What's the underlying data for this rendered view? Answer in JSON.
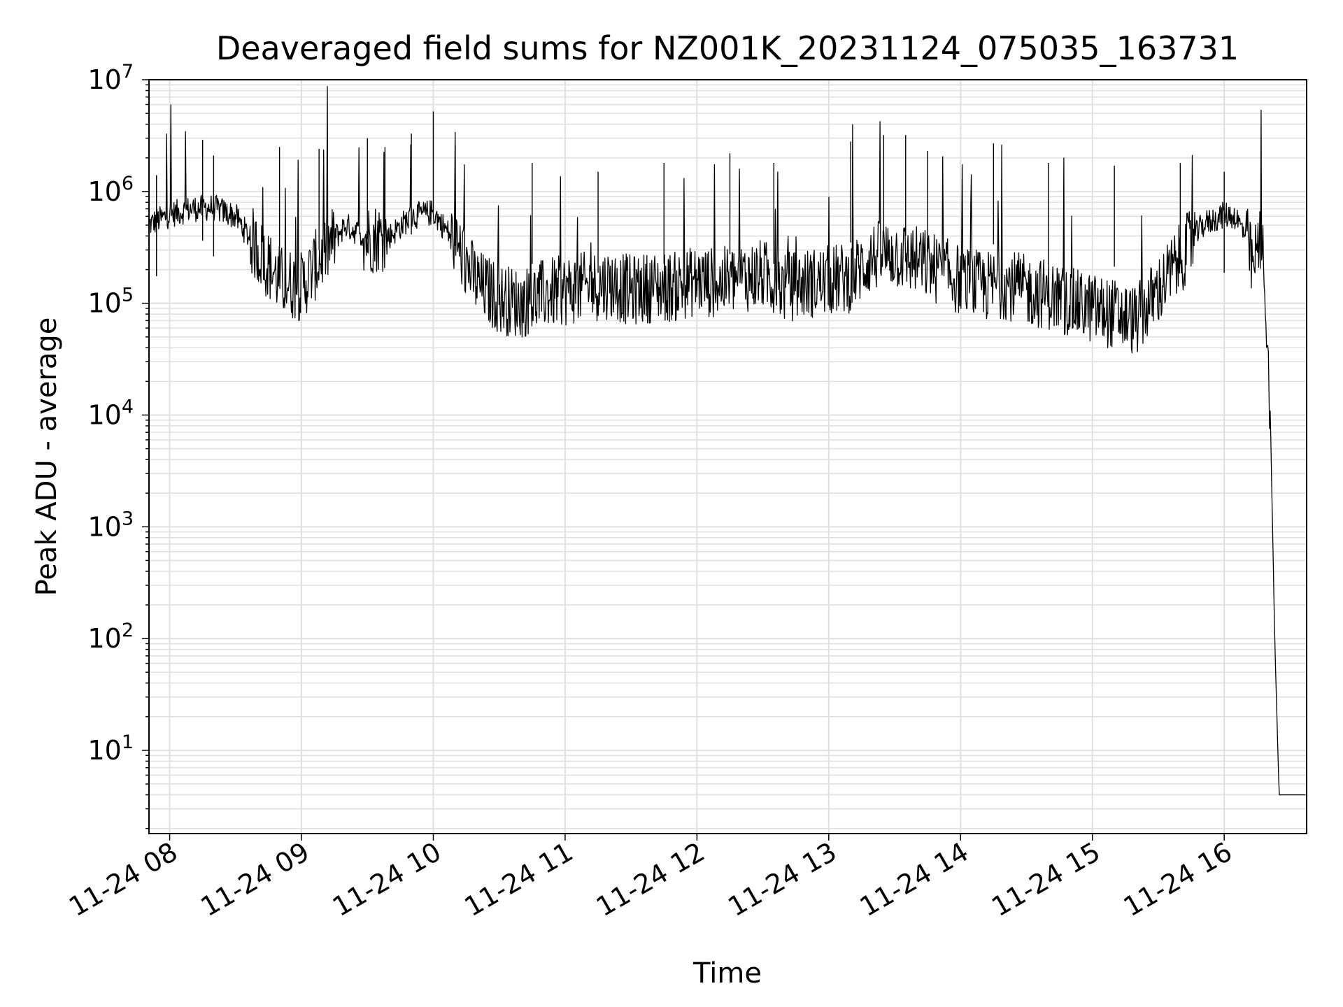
{
  "chart_data": {
    "type": "line",
    "title": "Deaveraged field sums for NZ001K_20231124_075035_163731",
    "xlabel": "Time",
    "ylabel": "Peak ADU - average",
    "yscale": "log",
    "ylim": [
      1.8,
      10000000
    ],
    "xlim": [
      "2023-11-24 07:50:35",
      "2023-11-24 16:37:31"
    ],
    "grid": true,
    "legend": "none",
    "colors": {
      "line": "#000000",
      "grid": "#e0e0e0",
      "axes": "#000000"
    },
    "x_ticks": [
      {
        "t": "2023-11-24 08:00",
        "label": "11-24 08"
      },
      {
        "t": "2023-11-24 09:00",
        "label": "11-24 09"
      },
      {
        "t": "2023-11-24 10:00",
        "label": "11-24 10"
      },
      {
        "t": "2023-11-24 11:00",
        "label": "11-24 11"
      },
      {
        "t": "2023-11-24 12:00",
        "label": "11-24 12"
      },
      {
        "t": "2023-11-24 13:00",
        "label": "11-24 13"
      },
      {
        "t": "2023-11-24 14:00",
        "label": "11-24 14"
      },
      {
        "t": "2023-11-24 15:00",
        "label": "11-24 15"
      },
      {
        "t": "2023-11-24 16:00",
        "label": "11-24 16"
      }
    ],
    "y_ticks": [
      {
        "value": 10,
        "base": "10",
        "exp": "1"
      },
      {
        "value": 100,
        "base": "10",
        "exp": "2"
      },
      {
        "value": 1000,
        "base": "10",
        "exp": "3"
      },
      {
        "value": 10000,
        "base": "10",
        "exp": "4"
      },
      {
        "value": 100000,
        "base": "10",
        "exp": "5"
      },
      {
        "value": 1000000,
        "base": "10",
        "exp": "6"
      },
      {
        "value": 10000000,
        "base": "10",
        "exp": "7"
      }
    ],
    "series": [
      {
        "x": [
          "2023-11-24 07:50",
          "2023-11-24 08:00",
          "2023-11-24 08:10",
          "2023-11-24 08:20",
          "2023-11-24 08:30",
          "2023-11-24 08:40",
          "2023-11-24 08:50",
          "2023-11-24 09:00",
          "2023-11-24 09:10",
          "2023-11-24 09:20",
          "2023-11-24 09:30",
          "2023-11-24 09:40",
          "2023-11-24 09:50",
          "2023-11-24 10:00",
          "2023-11-24 10:10",
          "2023-11-24 10:20",
          "2023-11-24 10:30",
          "2023-11-24 10:40",
          "2023-11-24 10:50",
          "2023-11-24 11:00",
          "2023-11-24 11:10",
          "2023-11-24 11:20",
          "2023-11-24 11:30",
          "2023-11-24 11:40",
          "2023-11-24 11:50",
          "2023-11-24 12:00",
          "2023-11-24 12:10",
          "2023-11-24 12:20",
          "2023-11-24 12:30",
          "2023-11-24 12:40",
          "2023-11-24 12:50",
          "2023-11-24 13:00",
          "2023-11-24 13:10",
          "2023-11-24 13:20",
          "2023-11-24 13:30",
          "2023-11-24 13:40",
          "2023-11-24 13:50",
          "2023-11-24 14:00",
          "2023-11-24 14:10",
          "2023-11-24 14:20",
          "2023-11-24 14:30",
          "2023-11-24 14:40",
          "2023-11-24 14:50",
          "2023-11-24 15:00",
          "2023-11-24 15:10",
          "2023-11-24 15:20",
          "2023-11-24 15:30",
          "2023-11-24 15:40",
          "2023-11-24 15:50",
          "2023-11-24 16:00",
          "2023-11-24 16:05",
          "2023-11-24 16:10",
          "2023-11-24 16:13",
          "2023-11-24 16:15",
          "2023-11-24 16:17",
          "2023-11-24 16:19",
          "2023-11-24 16:21",
          "2023-11-24 16:23",
          "2023-11-24 16:25",
          "2023-11-24 16:27",
          "2023-11-24 16:30",
          "2023-11-24 16:37"
        ],
        "y": [
          500000,
          620000,
          700000,
          720000,
          600000,
          300000,
          160000,
          140000,
          280000,
          500000,
          380000,
          400000,
          600000,
          650000,
          350000,
          150000,
          110000,
          100000,
          120000,
          130000,
          140000,
          150000,
          130000,
          140000,
          140000,
          160000,
          150000,
          170000,
          180000,
          140000,
          150000,
          160000,
          170000,
          260000,
          280000,
          240000,
          200000,
          160000,
          140000,
          150000,
          130000,
          120000,
          100000,
          90000,
          80000,
          70000,
          130000,
          250000,
          500000,
          620000,
          600000,
          400000,
          200000,
          300000,
          400000,
          100000,
          10000,
          100,
          4,
          4,
          4,
          4
        ]
      }
    ],
    "spikes": [
      {
        "x": "2023-11-24 07:54",
        "y": 1400000
      },
      {
        "x": "2023-11-24 08:15",
        "y": 2900000
      },
      {
        "x": "2023-11-24 08:20",
        "y": 2100000
      },
      {
        "x": "2023-11-24 08:50",
        "y": 2500000
      },
      {
        "x": "2023-11-24 09:08",
        "y": 2400000
      },
      {
        "x": "2023-11-24 09:30",
        "y": 3000000
      },
      {
        "x": "2023-11-24 09:38",
        "y": 2500000
      },
      {
        "x": "2023-11-24 09:50",
        "y": 3300000
      },
      {
        "x": "2023-11-24 10:00",
        "y": 5200000
      },
      {
        "x": "2023-11-24 10:10",
        "y": 2600000
      },
      {
        "x": "2023-11-24 10:45",
        "y": 1800000
      },
      {
        "x": "2023-11-24 11:15",
        "y": 1500000
      },
      {
        "x": "2023-11-24 11:45",
        "y": 1800000
      },
      {
        "x": "2023-11-24 12:15",
        "y": 2200000
      },
      {
        "x": "2023-11-24 12:35",
        "y": 1800000
      },
      {
        "x": "2023-11-24 13:10",
        "y": 2800000
      },
      {
        "x": "2023-11-24 13:25",
        "y": 3200000
      },
      {
        "x": "2023-11-24 13:35",
        "y": 3200000
      },
      {
        "x": "2023-11-24 13:45",
        "y": 2300000
      },
      {
        "x": "2023-11-24 14:15",
        "y": 2700000
      },
      {
        "x": "2023-11-24 14:40",
        "y": 1800000
      },
      {
        "x": "2023-11-24 15:10",
        "y": 1700000
      },
      {
        "x": "2023-11-24 15:40",
        "y": 1800000
      },
      {
        "x": "2023-11-24 16:00",
        "y": 1500000
      }
    ]
  }
}
